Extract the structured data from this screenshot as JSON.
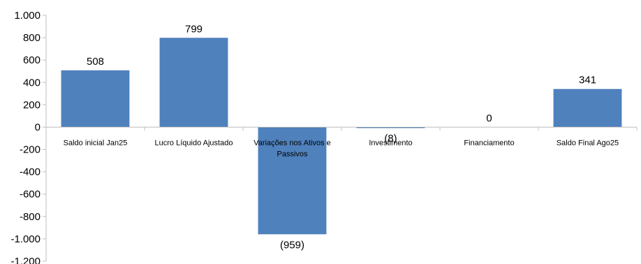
{
  "chart_data": {
    "type": "bar",
    "categories": [
      "Saldo inicial Jan25",
      "Lucro Líquido Ajustado",
      "Variações nos Ativos e Passivos",
      "Investimento",
      "Financiamento",
      "Saldo Final Ago25"
    ],
    "values": [
      508,
      799,
      -959,
      -8,
      0,
      341
    ],
    "data_labels": [
      "508",
      "799",
      "(959)",
      "(8)",
      "0",
      "341"
    ],
    "y_tick_labels": [
      "1.000",
      "800",
      "600",
      "400",
      "200",
      "0",
      "-200",
      "-400",
      "-600",
      "-800",
      "-1.000",
      "-1.200"
    ],
    "y_ticks": [
      1000,
      800,
      600,
      400,
      200,
      0,
      -200,
      -400,
      -600,
      -800,
      -1000,
      -1200
    ],
    "ylim": [
      -1200,
      1000
    ],
    "title": "",
    "xlabel": "",
    "ylabel": "",
    "grid": false,
    "legend": "none",
    "bar_color": "#4f81bd",
    "axis_color": "#bfbfbf"
  }
}
